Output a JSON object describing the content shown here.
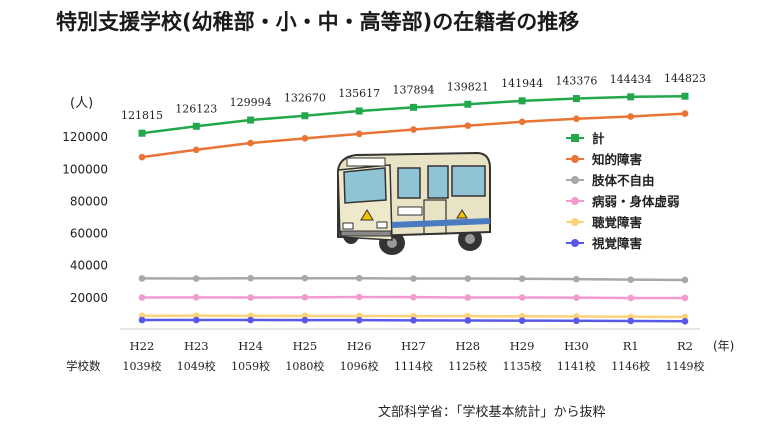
{
  "title": "特別支援学校(幼稚部・小・中・高等部)の在籍者の推移",
  "source": "文部科学省：「学校基本統計」から抜粋",
  "chart_data": {
    "type": "line",
    "ylabel": "(人)",
    "xlabel": "(年)",
    "ylim": [
      0,
      135000
    ],
    "yticks": [
      20000,
      40000,
      60000,
      80000,
      100000,
      120000
    ],
    "categories": [
      "H22",
      "H23",
      "H24",
      "H25",
      "H26",
      "H27",
      "H28",
      "H29",
      "H30",
      "R1",
      "R2"
    ],
    "row_label": "学校数",
    "school_counts": [
      "1039校",
      "1049校",
      "1059校",
      "1080校",
      "1096校",
      "1114校",
      "1125校",
      "1135校",
      "1141校",
      "1146校",
      "1149校"
    ],
    "legend_position": "right",
    "grid": false,
    "series": [
      {
        "name": "計",
        "color": "#22a84a",
        "marker": "square",
        "values": [
          121815,
          126123,
          129994,
          132670,
          135617,
          137894,
          139821,
          141944,
          143376,
          144434,
          144823
        ],
        "labels": [
          "121815",
          "126123",
          "129994",
          "132670",
          "135617",
          "137894",
          "139821",
          "141944",
          "143376",
          "144434",
          "144823"
        ]
      },
      {
        "name": "知的障害",
        "color": "#ea7435",
        "marker": "circle",
        "values": [
          106900,
          111500,
          115700,
          118600,
          121400,
          124100,
          126500,
          128900,
          130800,
          132200,
          134000
        ]
      },
      {
        "name": "肢体不自由",
        "color": "#a8a8a8",
        "marker": "circle",
        "values": [
          31500,
          31400,
          31600,
          31600,
          31600,
          31400,
          31400,
          31300,
          31000,
          30700,
          30500
        ]
      },
      {
        "name": "病弱・身体虚弱",
        "color": "#f29bd0",
        "marker": "circle",
        "values": [
          19600,
          19700,
          19600,
          19700,
          19900,
          19800,
          19600,
          19600,
          19500,
          19300,
          19300
        ]
      },
      {
        "name": "聴覚障害",
        "color": "#ffd27a",
        "marker": "circle",
        "values": [
          8200,
          8300,
          8200,
          8200,
          8100,
          8000,
          8000,
          7900,
          7800,
          7600,
          7500
        ]
      },
      {
        "name": "視覚障害",
        "color": "#5a58e8",
        "marker": "circle",
        "values": [
          5600,
          5600,
          5600,
          5500,
          5500,
          5400,
          5300,
          5200,
          5100,
          5000,
          4800
        ]
      }
    ]
  }
}
